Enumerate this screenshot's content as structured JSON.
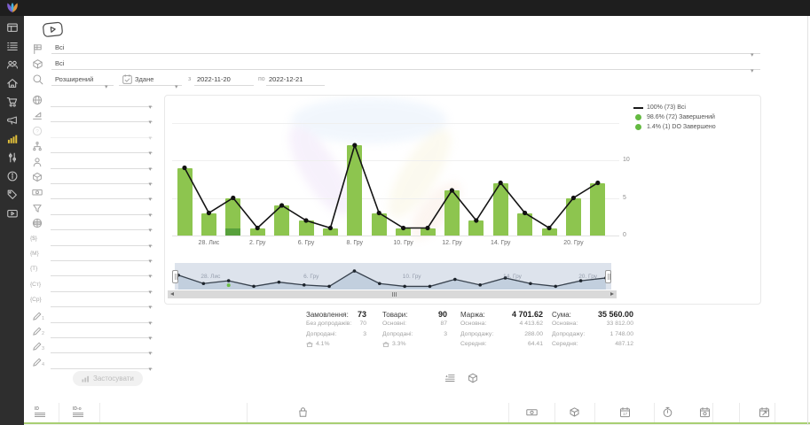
{
  "topbar": {
    "logo_icon": "brand-logo-icon"
  },
  "sidebar": {
    "items": [
      {
        "icon": "dashboard-icon"
      },
      {
        "icon": "orders-list-icon"
      },
      {
        "icon": "users-icon"
      },
      {
        "icon": "warehouse-icon"
      },
      {
        "icon": "cart-icon"
      },
      {
        "icon": "megaphone-icon"
      },
      {
        "icon": "bar-chart-icon",
        "active": true
      },
      {
        "icon": "sliders-icon"
      },
      {
        "icon": "info-icon"
      },
      {
        "icon": "tag-icon"
      },
      {
        "icon": "video-icon"
      }
    ]
  },
  "filters": {
    "help_video_icon": "play-video-icon",
    "status": {
      "icon": "status-funnel-icon",
      "value": "Всі"
    },
    "product": {
      "icon": "package-icon",
      "value": "Всі"
    },
    "search": {
      "icon": "search-icon",
      "mode_value": "Розширений"
    },
    "date_type": {
      "icon": "calendar-check-icon",
      "value": "Здане"
    },
    "date_from_label": "з",
    "date_from": "2022-11-20",
    "date_to_label": "по",
    "date_to": "2022-12-21",
    "rows": [
      {
        "icon": "globe-icon"
      },
      {
        "icon": "level-icon"
      },
      {
        "icon": "help-icon",
        "disabled": true
      },
      {
        "icon": "hierarchy-icon"
      },
      {
        "icon": "person-icon"
      },
      {
        "icon": "package-icon"
      },
      {
        "icon": "banknote-icon"
      },
      {
        "icon": "funnel-icon"
      },
      {
        "icon": "web-icon"
      },
      {
        "icon": "currency-braces-icon"
      },
      {
        "icon": "m-braces-icon"
      },
      {
        "icon": "t-braces-icon"
      },
      {
        "icon": "ct-braces-icon"
      },
      {
        "icon": "cp-braces-icon"
      },
      {
        "icon": "pencil-1-icon"
      },
      {
        "icon": "pencil-2-icon"
      },
      {
        "icon": "pencil-3-icon"
      },
      {
        "icon": "pencil-4-icon"
      }
    ],
    "apply": {
      "icon": "mini-bar-chart-icon",
      "label": "Застосувати",
      "disabled": true
    }
  },
  "chart_data": {
    "type": "bar",
    "stacked": true,
    "n_points": 18,
    "x_tick_labels": [
      {
        "index": 1,
        "label": "28. Лис"
      },
      {
        "index": 3,
        "label": "2. Гру"
      },
      {
        "index": 5,
        "label": "6. Гру"
      },
      {
        "index": 7,
        "label": "8. Гру"
      },
      {
        "index": 9,
        "label": "10. Гру"
      },
      {
        "index": 11,
        "label": "12. Гру"
      },
      {
        "index": 13,
        "label": "14. Гру"
      },
      {
        "index": 16,
        "label": "20. Гру"
      }
    ],
    "series": [
      {
        "name": "Всі",
        "type": "line",
        "color": "#141414",
        "values": [
          9,
          3,
          5,
          1,
          4,
          2,
          1,
          12,
          3,
          1,
          1,
          6,
          2,
          7,
          3,
          1,
          5,
          7
        ]
      },
      {
        "name": "Завершений",
        "type": "bar",
        "color": "#8dc54f",
        "values": [
          9,
          3,
          4,
          1,
          4,
          2,
          1,
          12,
          3,
          1,
          1,
          6,
          2,
          7,
          3,
          1,
          5,
          7
        ]
      },
      {
        "name": "DO Завершено",
        "type": "bar",
        "color": "#58a13c",
        "values": [
          0,
          0,
          1,
          0,
          0,
          0,
          0,
          0,
          0,
          0,
          0,
          0,
          0,
          0,
          0,
          0,
          0,
          0
        ]
      }
    ],
    "ylim": [
      0,
      15
    ],
    "yticks": [
      0,
      5,
      10
    ],
    "legend": [
      {
        "marker": "line",
        "color": "#1a1a1a",
        "label": "100%  (73) Всі"
      },
      {
        "marker": "dot",
        "color": "#64ba41",
        "label": "98.6% (72) Завершений"
      },
      {
        "marker": "dot",
        "color": "#64ba41",
        "label": "1.4%   (1) DO Завершено"
      }
    ],
    "navigator": {
      "labels": [
        {
          "index": 1,
          "label": "28. Лис"
        },
        {
          "index": 5,
          "label": "6. Гру"
        },
        {
          "index": 9,
          "label": "10. Гру"
        },
        {
          "index": 13,
          "label": "14. Гру"
        },
        {
          "index": 16,
          "label": "20. Гру"
        }
      ]
    }
  },
  "stats": {
    "columns": [
      {
        "title": "Замовлення:",
        "value": "73",
        "rows": [
          {
            "label": "Без допродажів:",
            "value": "70"
          },
          {
            "label": "Допродані:",
            "value": "3"
          },
          {
            "icon": "basket-percent-icon",
            "label": "",
            "value": "4.1%"
          }
        ]
      },
      {
        "title": "Товари:",
        "value": "90",
        "rows": [
          {
            "label": "Основні:",
            "value": "87"
          },
          {
            "label": "Допродані:",
            "value": "3"
          },
          {
            "icon": "basket-percent-icon",
            "label": "",
            "value": "3.3%"
          }
        ]
      },
      {
        "title": "Маржа:",
        "value": "4 701.62",
        "rows": [
          {
            "label": "Основна:",
            "value": "4 413.62"
          },
          {
            "label": "Допродажу:",
            "value": "288.00"
          },
          {
            "label": "Середня:",
            "value": "64.41"
          }
        ]
      },
      {
        "title": "Сума:",
        "value": "35 560.00",
        "rows": [
          {
            "label": "Основна:",
            "value": "33 812.00"
          },
          {
            "label": "Допродажу:",
            "value": "1 748.00"
          },
          {
            "label": "Середня:",
            "value": "487.12"
          }
        ]
      }
    ],
    "view_icons": [
      "list-sort-icon",
      "cube-icon"
    ]
  },
  "footer": {
    "id_label": "ID",
    "id_o_label": "ID-o",
    "icons": [
      "id-lines-icon",
      "id-o-lines-icon",
      "bag-icon",
      "banknote-icon",
      "cube-icon",
      "calendar-17-icon",
      "timer-icon",
      "calendar-dot-icon",
      "calendar-arrow-icon"
    ]
  },
  "colors": {
    "bar_green": "#8dc54f",
    "bar_dark_green": "#58a13c",
    "line_black": "#141414",
    "active_sidebar_icon": "#e4c23a",
    "footer_green": "#a8cf73",
    "navigator_band": "#dde3ec"
  }
}
